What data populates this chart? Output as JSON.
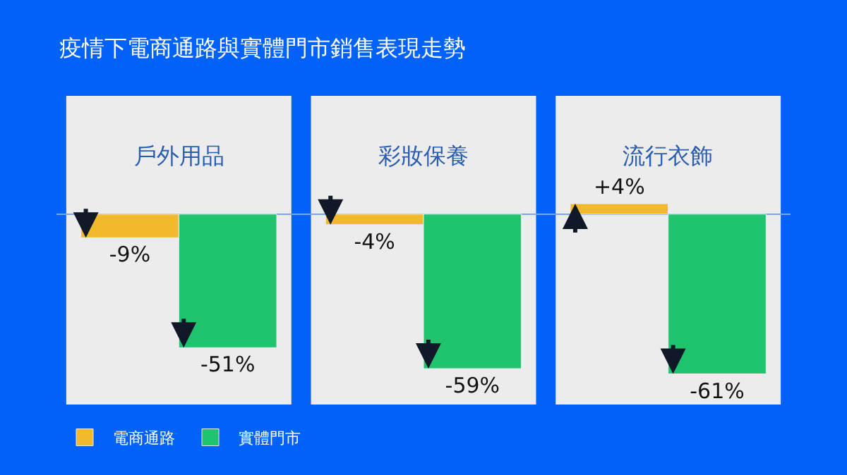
{
  "chart_data": {
    "type": "bar",
    "title": "疫情下電商通路與實體門市銷售表現走勢",
    "categories": [
      "戶外用品",
      "彩妝保養",
      "流行衣飾"
    ],
    "series": [
      {
        "name": "電商通路",
        "color": "#f2b92d",
        "values": [
          -9,
          -4,
          4
        ],
        "value_labels": [
          "-9%",
          "-4%",
          "+4%"
        ]
      },
      {
        "name": "實體門市",
        "color": "#21c46e",
        "values": [
          -51,
          -59,
          -61
        ],
        "value_labels": [
          "-51%",
          "-59%",
          "-61%"
        ]
      }
    ],
    "legend": "bottom left",
    "grid": false
  }
}
